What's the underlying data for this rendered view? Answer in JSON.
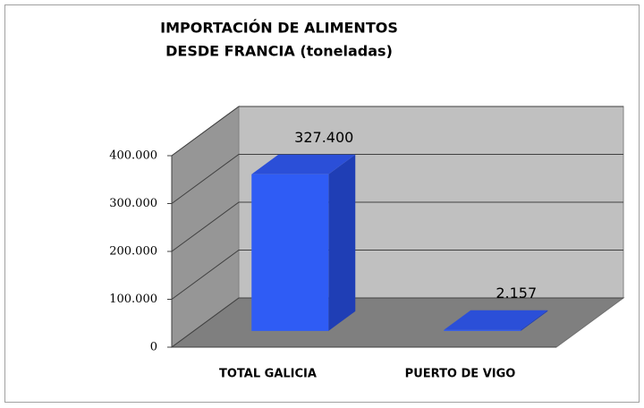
{
  "chart_data": {
    "type": "bar3d",
    "title": [
      "IMPORTACIÓN DE ALIMENTOS",
      "DESDE FRANCIA (toneladas)"
    ],
    "categories": [
      "TOTAL GALICIA",
      "PUERTO DE VIGO"
    ],
    "values": [
      327400,
      2157
    ],
    "value_labels": [
      "327.400",
      "2.157"
    ],
    "color": "#2f5cf5",
    "ylim": [
      0,
      400000
    ],
    "yticks": [
      0,
      {
        "value": 100000,
        "label": "100.000"
      },
      {
        "value": 200000,
        "label": "200.000"
      },
      {
        "value": 300000,
        "label": "300.000"
      },
      {
        "value": 400000,
        "label": "400.000"
      }
    ],
    "grid": true
  }
}
